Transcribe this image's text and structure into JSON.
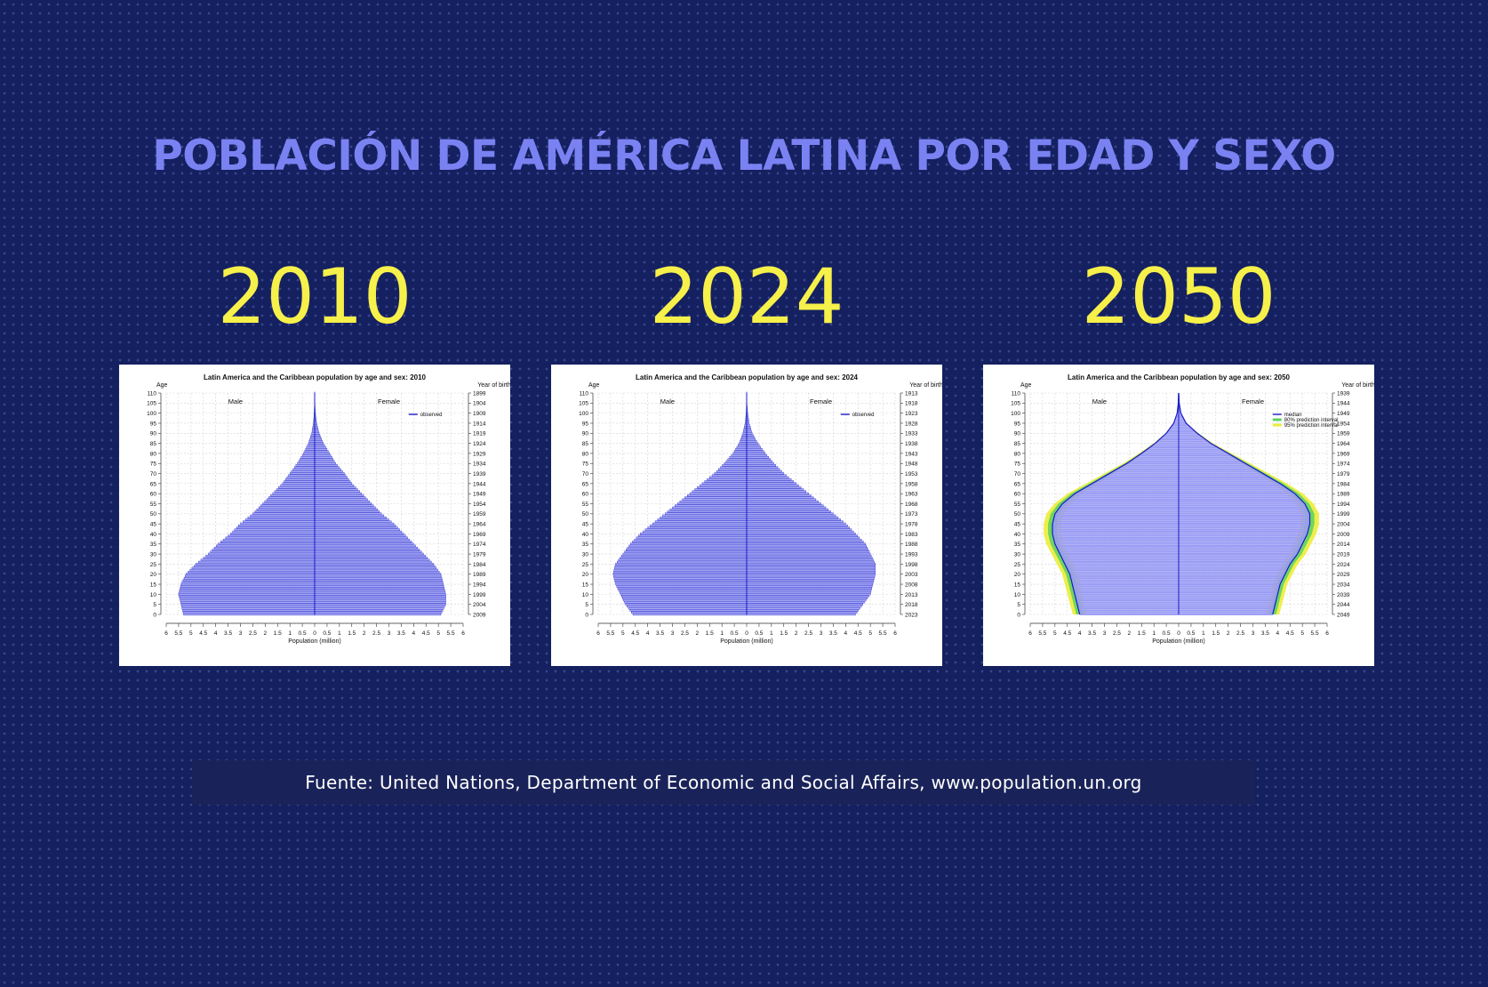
{
  "title": "POBLACIÓN DE AMÉRICA LATINA POR EDAD Y SEXO",
  "source": "Fuente: United Nations, Department of Economic and Social Affairs, www.population.un.org",
  "colors": {
    "background": "#152060",
    "title": "#7a82f2",
    "year": "#f6f04a",
    "bar_stroke": "#1a1ac8",
    "bar_fill": "#a8abf4",
    "median_fill": "#9a9cf4",
    "interval_80": "#5fd35f",
    "interval_95": "#ecec3a"
  },
  "chart_data": [
    {
      "type": "bar",
      "panel_label": "2010",
      "title": "Latin America and the Caribbean population by age and sex: 2010",
      "xlabel": "Population (million)",
      "ylabel": "Age",
      "y2label": "Year of birth",
      "xlim": [
        -6,
        6
      ],
      "ylim": [
        0,
        110
      ],
      "male_label": "Male",
      "female_label": "Female",
      "legend": [
        "observed"
      ],
      "legend_position": "top-right",
      "x_ticks": [
        "6",
        "5.5",
        "5",
        "4.5",
        "4",
        "3.5",
        "3",
        "2.5",
        "2",
        "1.5",
        "1",
        "0.5",
        "0",
        "0.5",
        "1",
        "1.5",
        "2",
        "2.5",
        "3",
        "3.5",
        "4",
        "4.5",
        "5",
        "5.5",
        "6"
      ],
      "age_ticks": [
        "110",
        "105",
        "100",
        "95",
        "90",
        "85",
        "80",
        "75",
        "70",
        "65",
        "60",
        "55",
        "50",
        "45",
        "40",
        "35",
        "30",
        "25",
        "20",
        "15",
        "10",
        "5",
        "0"
      ],
      "birth_ticks": [
        "1899",
        "1904",
        "1909",
        "1914",
        "1919",
        "1924",
        "1929",
        "1934",
        "1939",
        "1944",
        "1949",
        "1954",
        "1959",
        "1964",
        "1969",
        "1974",
        "1979",
        "1984",
        "1989",
        "1994",
        "1999",
        "2004",
        "2009"
      ],
      "age_profile": {
        "ages": [
          0,
          5,
          10,
          15,
          20,
          25,
          30,
          35,
          40,
          45,
          50,
          55,
          60,
          65,
          70,
          75,
          80,
          85,
          90,
          95,
          100,
          105,
          110
        ],
        "male": [
          5.3,
          5.4,
          5.5,
          5.4,
          5.2,
          4.8,
          4.3,
          3.9,
          3.4,
          3.0,
          2.5,
          2.1,
          1.7,
          1.3,
          1.0,
          0.7,
          0.45,
          0.25,
          0.12,
          0.05,
          0.02,
          0.01,
          0.005
        ],
        "female": [
          5.1,
          5.3,
          5.3,
          5.2,
          5.1,
          4.8,
          4.4,
          4.0,
          3.6,
          3.2,
          2.7,
          2.3,
          1.9,
          1.5,
          1.2,
          0.85,
          0.6,
          0.35,
          0.18,
          0.08,
          0.03,
          0.01,
          0.005
        ]
      }
    },
    {
      "type": "bar",
      "panel_label": "2024",
      "title": "Latin America and the Caribbean population by age and sex: 2024",
      "xlabel": "Population (million)",
      "ylabel": "Age",
      "y2label": "Year of birth",
      "xlim": [
        -6,
        6
      ],
      "ylim": [
        0,
        110
      ],
      "male_label": "Male",
      "female_label": "Female",
      "legend": [
        "observed"
      ],
      "legend_position": "top-right",
      "x_ticks": [
        "6",
        "5.5",
        "5",
        "4.5",
        "4",
        "3.5",
        "3",
        "2.5",
        "2",
        "1.5",
        "1",
        "0.5",
        "0",
        "0.5",
        "1",
        "1.5",
        "2",
        "2.5",
        "3",
        "3.5",
        "4",
        "4.5",
        "5",
        "5.5",
        "6"
      ],
      "age_ticks": [
        "110",
        "105",
        "100",
        "95",
        "90",
        "85",
        "80",
        "75",
        "70",
        "65",
        "60",
        "55",
        "50",
        "45",
        "40",
        "35",
        "30",
        "25",
        "20",
        "15",
        "10",
        "5",
        "0"
      ],
      "birth_ticks": [
        "1913",
        "1918",
        "1923",
        "1928",
        "1933",
        "1938",
        "1943",
        "1948",
        "1953",
        "1958",
        "1963",
        "1968",
        "1973",
        "1978",
        "1983",
        "1988",
        "1993",
        "1998",
        "2003",
        "2008",
        "2013",
        "2018",
        "2023"
      ],
      "age_profile": {
        "ages": [
          0,
          5,
          10,
          15,
          20,
          25,
          30,
          35,
          40,
          45,
          50,
          55,
          60,
          65,
          70,
          75,
          80,
          85,
          90,
          95,
          100,
          105,
          110
        ],
        "male": [
          4.6,
          4.9,
          5.1,
          5.3,
          5.4,
          5.3,
          5.0,
          4.7,
          4.3,
          3.8,
          3.3,
          2.8,
          2.3,
          1.8,
          1.3,
          0.9,
          0.55,
          0.3,
          0.15,
          0.06,
          0.02,
          0.01,
          0.005
        ],
        "female": [
          4.4,
          4.7,
          5.0,
          5.1,
          5.2,
          5.2,
          5.0,
          4.8,
          4.4,
          4.0,
          3.5,
          3.0,
          2.5,
          2.0,
          1.5,
          1.1,
          0.75,
          0.45,
          0.22,
          0.1,
          0.04,
          0.01,
          0.005
        ]
      }
    },
    {
      "type": "bar",
      "panel_label": "2050",
      "title": "Latin America and the Caribbean population by age and sex: 2050",
      "xlabel": "Population (million)",
      "ylabel": "Age",
      "y2label": "Year of birth",
      "xlim": [
        -6,
        6
      ],
      "ylim": [
        0,
        110
      ],
      "male_label": "Male",
      "female_label": "Female",
      "legend": [
        "median",
        "80% prediction interval",
        "95% prediction interval"
      ],
      "legend_position": "top-right",
      "x_ticks": [
        "6",
        "5.5",
        "5",
        "4.5",
        "4",
        "3.5",
        "3",
        "2.5",
        "2",
        "1.5",
        "1",
        "0.5",
        "0",
        "0.5",
        "1",
        "1.5",
        "2",
        "2.5",
        "3",
        "3.5",
        "4",
        "4.5",
        "5",
        "5.5",
        "6"
      ],
      "age_ticks": [
        "110",
        "105",
        "100",
        "95",
        "90",
        "85",
        "80",
        "75",
        "70",
        "65",
        "60",
        "55",
        "50",
        "45",
        "40",
        "35",
        "30",
        "25",
        "20",
        "15",
        "10",
        "5",
        "0"
      ],
      "birth_ticks": [
        "1939",
        "1944",
        "1949",
        "1954",
        "1959",
        "1964",
        "1969",
        "1974",
        "1979",
        "1984",
        "1989",
        "1994",
        "1999",
        "2004",
        "2009",
        "2014",
        "2019",
        "2024",
        "2029",
        "2034",
        "2039",
        "2044",
        "2049"
      ],
      "age_profile": {
        "ages": [
          0,
          5,
          10,
          15,
          20,
          25,
          30,
          35,
          40,
          45,
          50,
          55,
          60,
          65,
          70,
          75,
          80,
          85,
          90,
          95,
          100,
          105,
          110
        ],
        "male": [
          4.0,
          4.1,
          4.2,
          4.3,
          4.4,
          4.6,
          4.8,
          5.0,
          5.1,
          5.1,
          5.0,
          4.7,
          4.2,
          3.5,
          2.8,
          2.1,
          1.5,
          0.95,
          0.5,
          0.2,
          0.06,
          0.015,
          0.005
        ],
        "female": [
          3.8,
          3.9,
          4.0,
          4.1,
          4.3,
          4.5,
          4.8,
          5.0,
          5.2,
          5.3,
          5.3,
          5.1,
          4.7,
          4.1,
          3.4,
          2.7,
          2.0,
          1.3,
          0.75,
          0.3,
          0.09,
          0.02,
          0.005
        ]
      }
    }
  ]
}
